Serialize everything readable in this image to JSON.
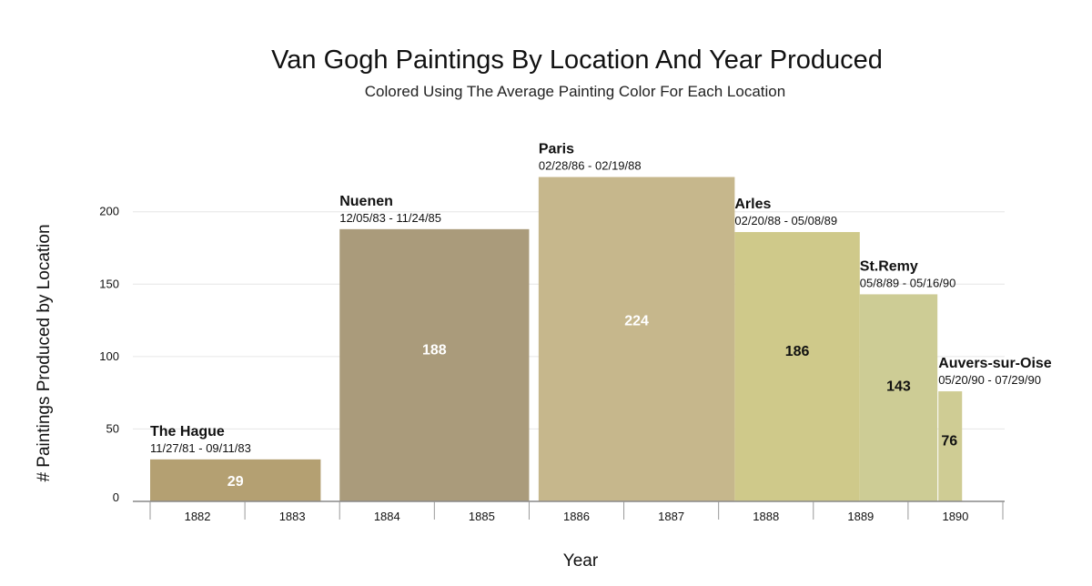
{
  "chart_data": {
    "type": "bar",
    "title": "Van Gogh Paintings By Location And Year Produced",
    "subtitle": "Colored Using The Average Painting Color For Each Location",
    "xlabel": "Year",
    "ylabel": "# Paintings  Produced by Location",
    "ylim": [
      0,
      230
    ],
    "yticks": [
      0,
      50,
      100,
      150,
      200
    ],
    "xlim": [
      1881.5,
      1890.5
    ],
    "xticks": [
      "1882",
      "1883",
      "1884",
      "1885",
      "1886",
      "1887",
      "1888",
      "1889",
      "1890"
    ],
    "grid": true,
    "locations": [
      {
        "name": "The Hague",
        "dates": "11/27/81 - 09/11/83",
        "value": 29,
        "x_start": 1881.5,
        "x_end": 1883.3,
        "color": "#b4a072",
        "value_color": "#ffffff"
      },
      {
        "name": "Nuenen",
        "dates": "12/05/83 - 11/24/85",
        "value": 188,
        "x_start": 1883.5,
        "x_end": 1885.5,
        "color": "#aa9b7b",
        "value_color": "#ffffff"
      },
      {
        "name": "Paris",
        "dates": "02/28/86 - 02/19/88",
        "value": 224,
        "x_start": 1885.6,
        "x_end": 1887.67,
        "color": "#c6b78c",
        "value_color": "#ffffff"
      },
      {
        "name": "Arles",
        "dates": "02/20/88 - 05/08/89",
        "value": 186,
        "x_start": 1887.67,
        "x_end": 1888.99,
        "color": "#cfc98a",
        "value_color": "#111111"
      },
      {
        "name": "St.Remy",
        "dates": "05/8/89 - 05/16/90",
        "value": 143,
        "x_start": 1888.99,
        "x_end": 1889.81,
        "color": "#cdcc95",
        "value_color": "#111111"
      },
      {
        "name": "Auvers-sur-Oise",
        "dates": "05/20/90 - 07/29/90",
        "value": 76,
        "x_start": 1889.82,
        "x_end": 1890.07,
        "color": "#cfcc94",
        "value_color": "#111111"
      }
    ]
  }
}
